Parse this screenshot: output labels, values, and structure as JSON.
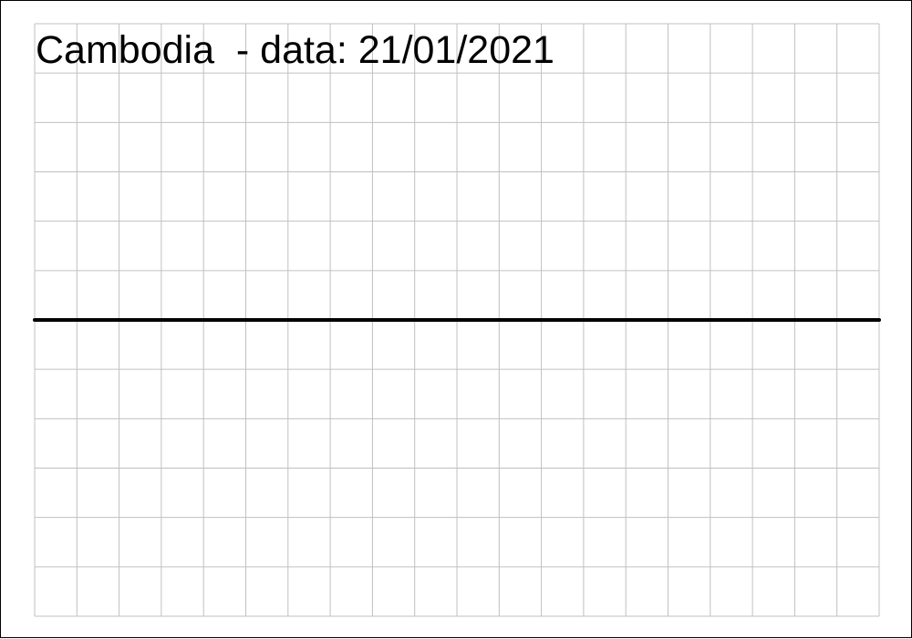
{
  "chart_data": {
    "type": "line",
    "title": "Cambodia  - data: 21/01/2021",
    "grid": true,
    "grid_color": "#c0c0c0",
    "line_color": "#000000",
    "background": "#ffffff",
    "series": [
      {
        "values": [
          0,
          0
        ]
      }
    ]
  }
}
